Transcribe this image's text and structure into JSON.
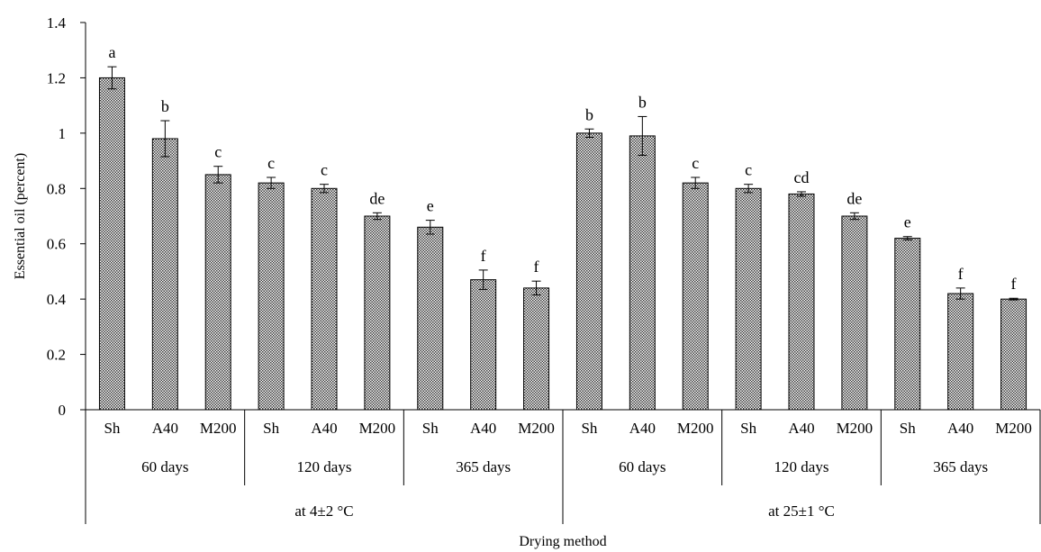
{
  "chart_data": {
    "type": "bar",
    "title": "",
    "xlabel": "Drying method",
    "ylabel": "Essential oil (percent)",
    "ylim": [
      0,
      1.4
    ],
    "yticks": [
      "0",
      "0.2",
      "0.4",
      "0.6",
      "0.8",
      "1",
      "1.2",
      "1.4"
    ],
    "grid": false,
    "legend": "none",
    "bar_fill": "#8c8c8c",
    "bar_pattern": "crosshatch",
    "temperatures": [
      {
        "label": "at 4±2 °C",
        "periods": [
          {
            "label": "60 days",
            "bars": [
              {
                "method": "Sh",
                "value": 1.2,
                "error": 0.04,
                "letter": "a"
              },
              {
                "method": "A40",
                "value": 0.98,
                "error": 0.065,
                "letter": "b"
              },
              {
                "method": "M200",
                "value": 0.85,
                "error": 0.03,
                "letter": "c"
              }
            ]
          },
          {
            "label": "120 days",
            "bars": [
              {
                "method": "Sh",
                "value": 0.82,
                "error": 0.02,
                "letter": "c"
              },
              {
                "method": "A40",
                "value": 0.8,
                "error": 0.015,
                "letter": "c"
              },
              {
                "method": "M200",
                "value": 0.7,
                "error": 0.012,
                "letter": "de"
              }
            ]
          },
          {
            "label": "365 days",
            "bars": [
              {
                "method": "Sh",
                "value": 0.66,
                "error": 0.025,
                "letter": "e"
              },
              {
                "method": "A40",
                "value": 0.47,
                "error": 0.035,
                "letter": "f"
              },
              {
                "method": "M200",
                "value": 0.44,
                "error": 0.025,
                "letter": "f"
              }
            ]
          }
        ]
      },
      {
        "label": "at 25±1 °C",
        "periods": [
          {
            "label": "60 days",
            "bars": [
              {
                "method": "Sh",
                "value": 1.0,
                "error": 0.015,
                "letter": "b"
              },
              {
                "method": "A40",
                "value": 0.99,
                "error": 0.07,
                "letter": "b"
              },
              {
                "method": "M200",
                "value": 0.82,
                "error": 0.02,
                "letter": "c"
              }
            ]
          },
          {
            "label": "120 days",
            "bars": [
              {
                "method": "Sh",
                "value": 0.8,
                "error": 0.015,
                "letter": "c"
              },
              {
                "method": "A40",
                "value": 0.78,
                "error": 0.008,
                "letter": "cd"
              },
              {
                "method": "M200",
                "value": 0.7,
                "error": 0.012,
                "letter": "de"
              }
            ]
          },
          {
            "label": "365 days",
            "bars": [
              {
                "method": "Sh",
                "value": 0.62,
                "error": 0.006,
                "letter": "e"
              },
              {
                "method": "A40",
                "value": 0.42,
                "error": 0.02,
                "letter": "f"
              },
              {
                "method": "M200",
                "value": 0.4,
                "error": 0.003,
                "letter": "f"
              }
            ]
          }
        ]
      }
    ]
  }
}
